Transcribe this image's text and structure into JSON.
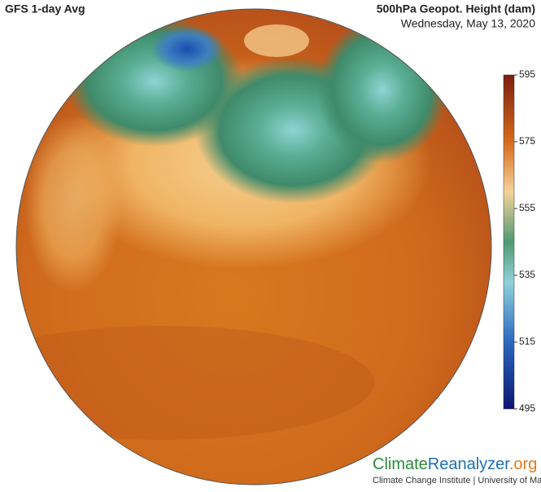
{
  "header": {
    "title": "GFS 1-day Avg",
    "variable": "500hPa Geopot. Height (dam)",
    "date": "Wednesday, May 13, 2020"
  },
  "colorbar": {
    "range": [
      495,
      595
    ],
    "ticks": [
      595,
      575,
      555,
      535,
      515,
      495
    ]
  },
  "footer": {
    "brand_part1": "Climate",
    "brand_part2": "Reanalyzer",
    "brand_part3": ".org",
    "credit": "Climate Change Institute | University of Maine"
  }
}
